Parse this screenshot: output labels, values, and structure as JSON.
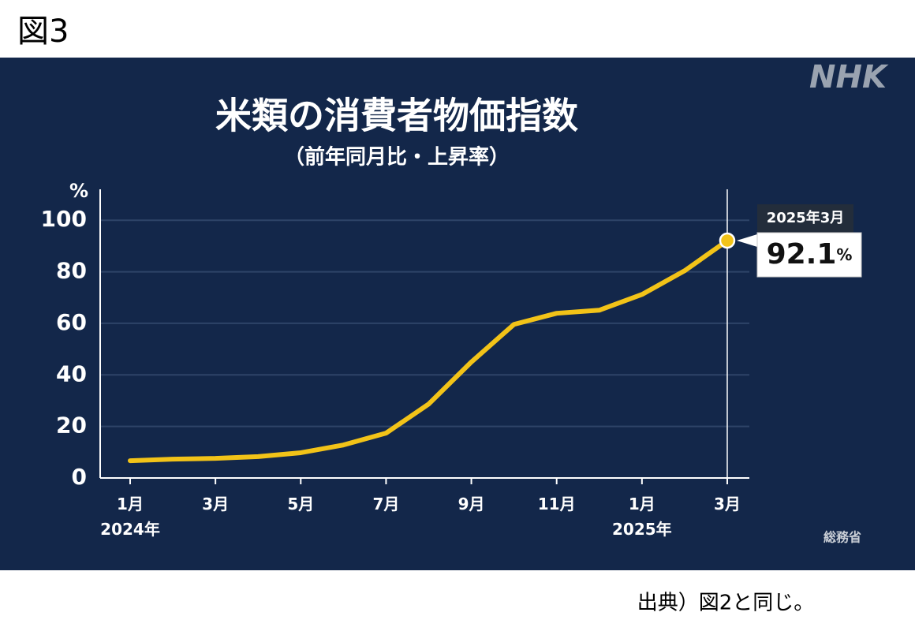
{
  "figure_label": "図3",
  "footer": "出典）図2と同じ。",
  "chart_data": {
    "type": "line",
    "title": "米類の消費者物価指数",
    "subtitle": "（前年同月比・上昇率）",
    "y_axis_label": "%",
    "logo": "NHK",
    "source": "総務省",
    "categories": [
      "1月\n2024年",
      null,
      "3月",
      null,
      "5月",
      null,
      "7月",
      null,
      "9月",
      null,
      "11月",
      null,
      "1月\n2025年",
      null,
      "3月"
    ],
    "series": [
      {
        "name": "米類",
        "color": "#f2c318",
        "values": [
          6.7,
          7.3,
          7.6,
          8.3,
          9.8,
          12.8,
          17.4,
          28.7,
          45.0,
          59.6,
          63.9,
          65.1,
          71.2,
          80.4,
          92.1
        ],
        "value_labels": [
          null,
          null,
          null,
          null,
          null,
          null,
          null,
          null,
          null,
          null,
          null,
          null,
          null,
          null,
          "92.1%"
        ]
      }
    ],
    "callout_title": "2025年3月",
    "ylim": [
      0,
      112
    ],
    "yticks": [
      0,
      20,
      40,
      60,
      80,
      100
    ],
    "grid": true
  }
}
